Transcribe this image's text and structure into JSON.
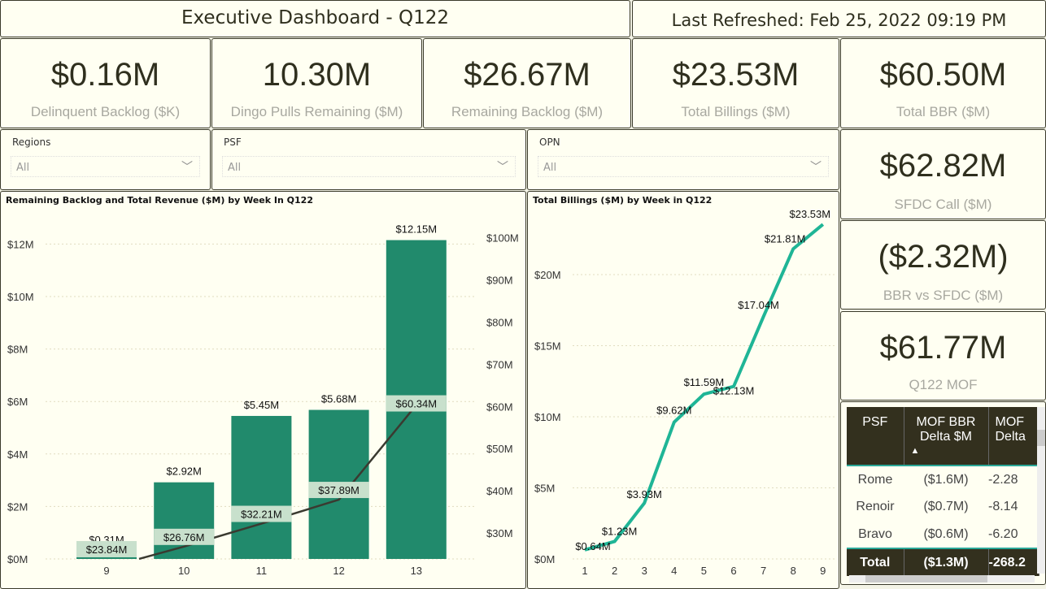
{
  "header": {
    "title": "Executive Dashboard - Q122",
    "refreshed": "Last Refreshed: Feb 25, 2022 09:19 PM"
  },
  "kpis": [
    {
      "value": "$0.16M",
      "label": "Delinquent Backlog ($K)"
    },
    {
      "value": "10.30M",
      "label": "Dingo Pulls Remaining ($M)"
    },
    {
      "value": "$26.67M",
      "label": "Remaining Backlog ($M)"
    },
    {
      "value": "$23.53M",
      "label": "Total Billings ($M)"
    },
    {
      "value": "$60.50M",
      "label": "Total BBR ($M)"
    },
    {
      "value": "$62.82M",
      "label": "SFDC Call ($M)"
    },
    {
      "value": "($2.32M)",
      "label": "BBR vs SFDC ($M)"
    },
    {
      "value": "$61.77M",
      "label": "Q122 MOF"
    }
  ],
  "slicers": [
    {
      "label": "Regions",
      "value": "All"
    },
    {
      "label": "PSF",
      "value": "All"
    },
    {
      "label": "OPN",
      "value": "All"
    }
  ],
  "table": {
    "headers": [
      "PSF",
      "MOF BBR Delta $M",
      "MOF Delta"
    ],
    "sort_indicator": "▲",
    "rows": [
      [
        "Rome",
        "($1.6M)",
        "-2.28"
      ],
      [
        "Renoir",
        "($0.7M)",
        "-8.14"
      ],
      [
        "Bravo",
        "($0.6M)",
        "-6.20"
      ]
    ],
    "total": [
      "Total",
      "($1.3M)",
      "-268.2"
    ]
  },
  "colors": {
    "bar": "#218a6c",
    "revenue_line": "#3a3a30",
    "billings_line": "#1fb596",
    "label_bg": "#c8e0cc"
  },
  "chart_data": [
    {
      "type": "bar+line",
      "title": "Remaining Backlog and Total Revenue ($M) by Week In Q122",
      "categories": [
        "9",
        "10",
        "11",
        "12",
        "13"
      ],
      "bars": {
        "values": [
          0.31,
          2.92,
          5.45,
          5.68,
          12.15
        ],
        "labels": [
          "$0.31M",
          "$2.92M",
          "$5.45M",
          "$5.68M",
          "$12.15M"
        ]
      },
      "line": {
        "values": [
          23.84,
          26.76,
          32.21,
          37.89,
          60.34
        ],
        "labels": [
          "$23.84M",
          "$26.76M",
          "$32.21M",
          "$37.89M",
          "$60.34M"
        ]
      },
      "y_left": {
        "ticks": [
          "$0M",
          "$2M",
          "$4M",
          "$6M",
          "$8M",
          "$10M",
          "$12M"
        ],
        "range": [
          0,
          12.9
        ]
      },
      "y_right": {
        "ticks": [
          "$30M",
          "$40M",
          "$50M",
          "$60M",
          "$70M",
          "$80M",
          "$90M",
          "$100M"
        ]
      },
      "grid": true
    },
    {
      "type": "line",
      "title": "Total Billings ($M) by Week in Q122",
      "x": [
        "1",
        "2",
        "3",
        "4",
        "5",
        "6",
        "7",
        "8",
        "9"
      ],
      "values": [
        0.64,
        1.23,
        3.93,
        9.62,
        11.59,
        12.13,
        17.04,
        21.81,
        23.53
      ],
      "labels": [
        "$0.64M",
        "$1.23M",
        "$3.93M",
        "$9.62M",
        "$11.59M",
        "$12.13M",
        "$17.04M",
        "$21.81M",
        "$23.53M"
      ],
      "y": {
        "ticks": [
          "$0M",
          "$5M",
          "$10M",
          "$15M",
          "$20M"
        ],
        "range": [
          0,
          25
        ]
      },
      "grid": true
    }
  ]
}
